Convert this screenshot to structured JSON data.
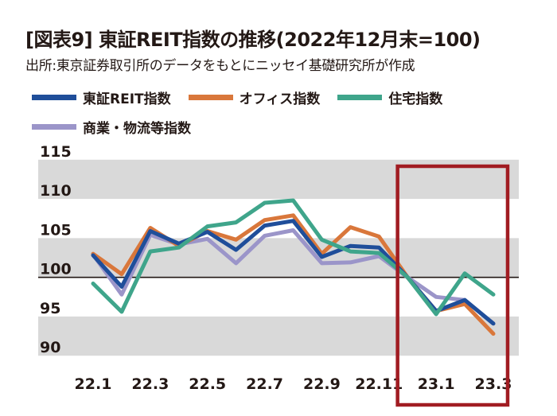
{
  "title": "[図表9] 東証REIT指数の推移(2022年12月末=100)",
  "source": "出所:東京証券取引所のデータをもとにニッセイ基礎研究所が作成",
  "colors": {
    "band": "#d9d9d9",
    "baseline": "#231815",
    "highlight_box": "#a11c22"
  },
  "chart_data": {
    "type": "line",
    "title": "[図表9] 東証REIT指数の推移(2022年12月末=100)",
    "x": [
      "22.1",
      "22.2",
      "22.3",
      "22.4",
      "22.5",
      "22.6",
      "22.7",
      "22.8",
      "22.9",
      "22.10",
      "22.11",
      "22.12",
      "23.1",
      "23.2",
      "23.3"
    ],
    "x_tick_labels": [
      "22.1",
      "22.3",
      "22.5",
      "22.7",
      "22.9",
      "22.11",
      "23.1",
      "23.3"
    ],
    "y_ticks": [
      115,
      110,
      105,
      100,
      95,
      90
    ],
    "ylim": [
      88.5,
      116.5
    ],
    "baseline": 100,
    "grid": "alternating horizontal bands",
    "legend_position": "top",
    "highlight_range": [
      "23.1",
      "23.3"
    ],
    "series": [
      {
        "name": "東証REIT指数",
        "color": "#1f4e9a",
        "values": [
          102.8,
          98.8,
          105.9,
          104.3,
          105.8,
          103.5,
          106.6,
          107.2,
          102.6,
          104.0,
          103.8,
          100.0,
          95.7,
          97.1,
          94.1
        ]
      },
      {
        "name": "オフィス指数",
        "color": "#d9773b",
        "values": [
          103.0,
          100.4,
          106.3,
          104.0,
          105.9,
          104.8,
          107.3,
          107.9,
          103.0,
          106.4,
          105.2,
          100.0,
          95.7,
          96.6,
          92.8
        ]
      },
      {
        "name": "住宅指数",
        "color": "#3fa58b",
        "values": [
          99.2,
          95.6,
          103.3,
          103.8,
          106.5,
          107.0,
          109.5,
          109.8,
          104.8,
          103.3,
          103.1,
          100.0,
          95.3,
          100.5,
          97.8
        ]
      },
      {
        "name": "商業・物流等指数",
        "color": "#9b95c9",
        "values": [
          102.9,
          97.8,
          105.4,
          104.2,
          104.9,
          101.8,
          105.3,
          106.0,
          101.8,
          101.9,
          102.7,
          100.0,
          97.5,
          97.1,
          94.1
        ]
      }
    ]
  }
}
